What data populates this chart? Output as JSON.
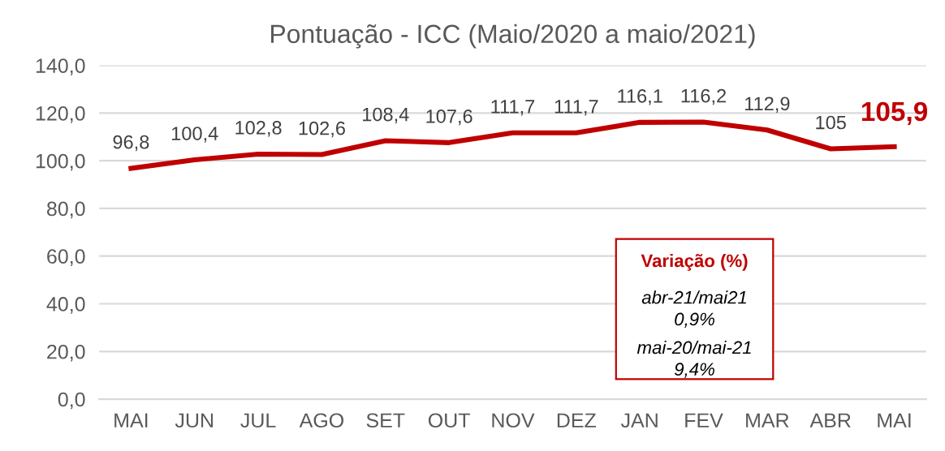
{
  "chart_data": {
    "type": "line",
    "title": "Pontuação - ICC (Maio/2020 a maio/2021)",
    "categories": [
      "MAI",
      "JUN",
      "JUL",
      "AGO",
      "SET",
      "OUT",
      "NOV",
      "DEZ",
      "JAN",
      "FEV",
      "MAR",
      "ABR",
      "MAI"
    ],
    "values": [
      96.8,
      100.4,
      102.8,
      102.6,
      108.4,
      107.6,
      111.7,
      111.7,
      116.1,
      116.2,
      112.9,
      105,
      105.9
    ],
    "value_labels": [
      "96,8",
      "100,4",
      "102,8",
      "102,6",
      "108,4",
      "107,6",
      "111,7",
      "111,7",
      "116,1",
      "116,2",
      "112,9",
      "105",
      "105,9"
    ],
    "color": "#c00000",
    "ylim": [
      0,
      140
    ],
    "yticks": [
      {
        "value": 0,
        "label": "0,0"
      },
      {
        "value": 20,
        "label": "20,0"
      },
      {
        "value": 40,
        "label": "40,0"
      },
      {
        "value": 60,
        "label": "60,0"
      },
      {
        "value": 80,
        "label": "80,0"
      },
      {
        "value": 100,
        "label": "100,0"
      },
      {
        "value": 120,
        "label": "120,0"
      },
      {
        "value": 140,
        "label": "140,0"
      }
    ],
    "grid": "y",
    "marker": "none",
    "line_style": "solid",
    "annotations": [
      "Variação (%)",
      "abr-21/mai21",
      "0,9%",
      "mai-20/mai-21",
      "9,4%"
    ]
  }
}
